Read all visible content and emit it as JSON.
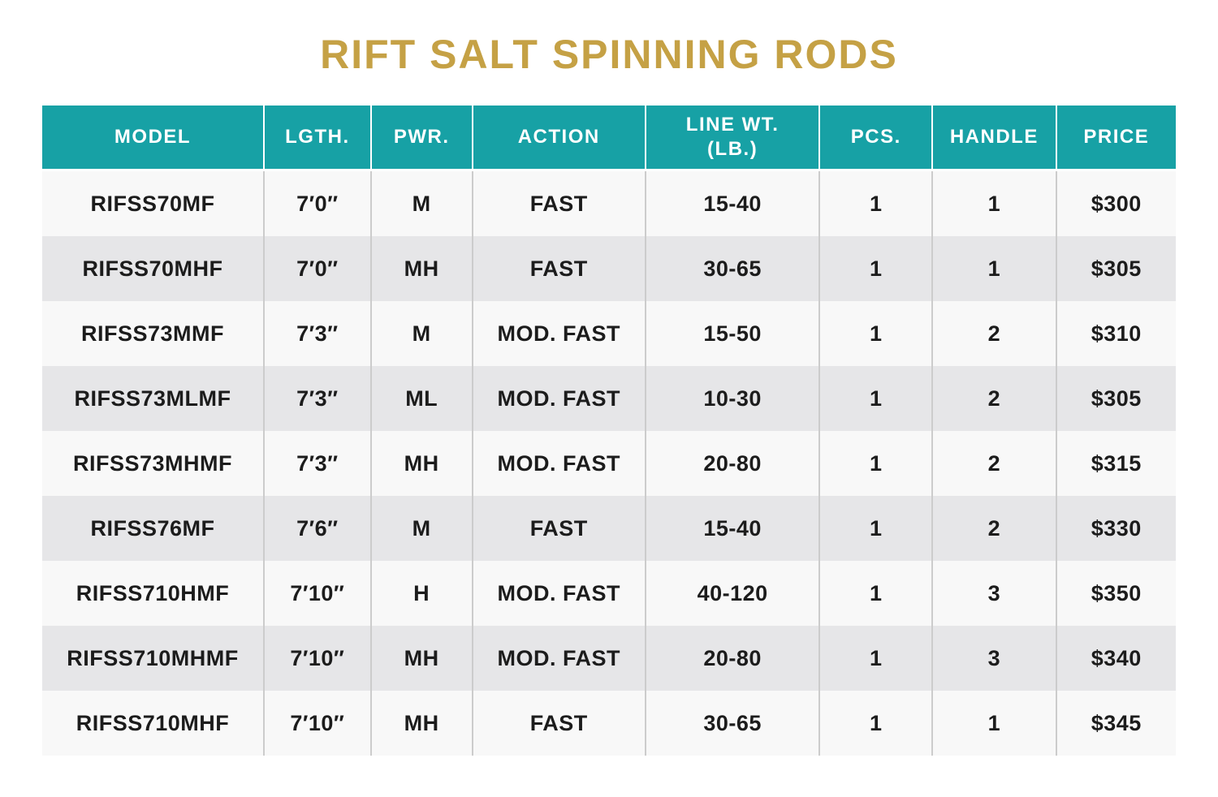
{
  "title": "RIFT SALT SPINNING RODS",
  "colors": {
    "title_gold": "#C5A145",
    "header_teal": "#17A1A5",
    "row_light": "#F8F8F8",
    "row_shaded": "#E6E6E8",
    "cell_text": "#1C1C1C"
  },
  "table": {
    "column_keys": [
      "model",
      "length",
      "power",
      "action",
      "line-weight",
      "pieces",
      "handle",
      "price"
    ],
    "columns": [
      "MODEL",
      "LGTH.",
      "PWR.",
      "ACTION",
      "LINE WT.\n(LB.)",
      "PCS.",
      "HANDLE",
      "PRICE"
    ],
    "rows": [
      [
        "RIFSS70MF",
        "7′0″",
        "M",
        "FAST",
        "15-40",
        "1",
        "1",
        "$300"
      ],
      [
        "RIFSS70MHF",
        "7′0″",
        "MH",
        "FAST",
        "30-65",
        "1",
        "1",
        "$305"
      ],
      [
        "RIFSS73MMF",
        "7′3″",
        "M",
        "MOD. FAST",
        "15-50",
        "1",
        "2",
        "$310"
      ],
      [
        "RIFSS73MLMF",
        "7′3″",
        "ML",
        "MOD. FAST",
        "10-30",
        "1",
        "2",
        "$305"
      ],
      [
        "RIFSS73MHMF",
        "7′3″",
        "MH",
        "MOD. FAST",
        "20-80",
        "1",
        "2",
        "$315"
      ],
      [
        "RIFSS76MF",
        "7′6″",
        "M",
        "FAST",
        "15-40",
        "1",
        "2",
        "$330"
      ],
      [
        "RIFSS710HMF",
        "7′10″",
        "H",
        "MOD. FAST",
        "40-120",
        "1",
        "3",
        "$350"
      ],
      [
        "RIFSS710MHMF",
        "7′10″",
        "MH",
        "MOD. FAST",
        "20-80",
        "1",
        "3",
        "$340"
      ],
      [
        "RIFSS710MHF",
        "7′10″",
        "MH",
        "FAST",
        "30-65",
        "1",
        "1",
        "$345"
      ]
    ]
  }
}
